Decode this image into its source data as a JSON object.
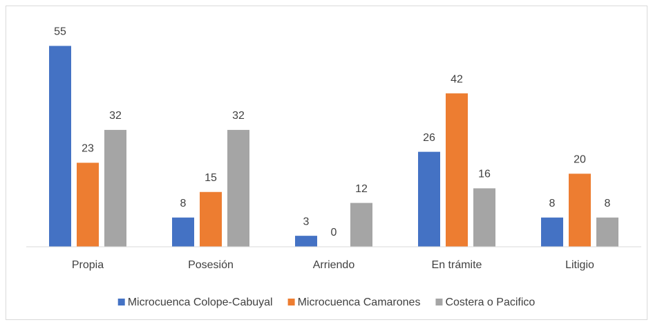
{
  "chart_data": {
    "type": "bar",
    "categories": [
      "Propia",
      "Posesión",
      "Arriendo",
      "En trámite",
      "Litigio"
    ],
    "series": [
      {
        "name": "Microcuenca Colope-Cabuyal",
        "color": "#4472c4",
        "values": [
          55,
          8,
          3,
          26,
          8
        ]
      },
      {
        "name": "Microcuenca Camarones",
        "color": "#ed7d31",
        "values": [
          23,
          15,
          0,
          42,
          20
        ]
      },
      {
        "name": "Costera o Pacifico",
        "color": "#a5a5a5",
        "values": [
          32,
          32,
          12,
          16,
          8
        ]
      }
    ],
    "ylim": [
      0,
      60
    ],
    "legend": "bottom"
  }
}
